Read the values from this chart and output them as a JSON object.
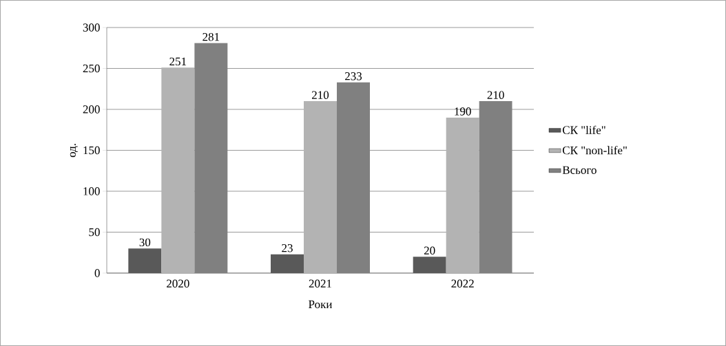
{
  "chart_data": {
    "type": "bar",
    "categories": [
      "2020",
      "2021",
      "2022"
    ],
    "series": [
      {
        "name": "СК \"life\"",
        "color": "#595959",
        "values": [
          30,
          23,
          20
        ]
      },
      {
        "name": "СК \"non-life\"",
        "color": "#b3b3b3",
        "values": [
          251,
          210,
          190
        ]
      },
      {
        "name": "Всього",
        "color": "#808080",
        "values": [
          281,
          233,
          210
        ]
      }
    ],
    "xlabel": "Роки",
    "ylabel": "од.",
    "ylim": [
      0,
      300
    ],
    "yticks": [
      0,
      50,
      100,
      150,
      200,
      250,
      300
    ],
    "grid": "y",
    "legend": "right",
    "data_labels": true
  }
}
